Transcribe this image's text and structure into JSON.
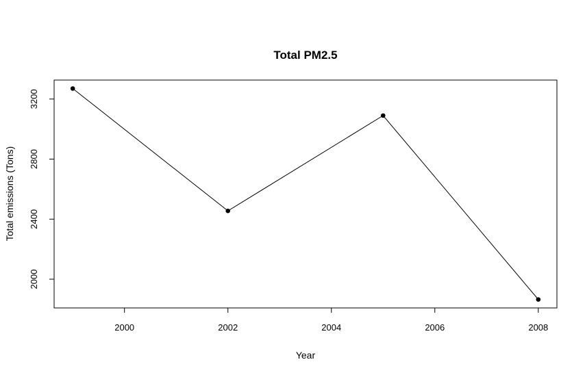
{
  "chart_data": {
    "type": "line",
    "title": "Total PM2.5",
    "xlabel": "Year",
    "ylabel": "Total emissions (Tons)",
    "x": [
      1999,
      2002,
      2005,
      2008
    ],
    "series": [
      {
        "values": [
          3270,
          2455,
          3090,
          1865
        ]
      }
    ],
    "xlim": [
      1998.64,
      2008.36
    ],
    "ylim": [
      1808.6,
      3326.4
    ],
    "xticks": [
      2000,
      2002,
      2004,
      2006,
      2008
    ],
    "yticks": [
      2000,
      2400,
      2800,
      3200
    ],
    "grid": false,
    "legend": "none",
    "line_color": "#000000",
    "marker": "filled-circle"
  }
}
